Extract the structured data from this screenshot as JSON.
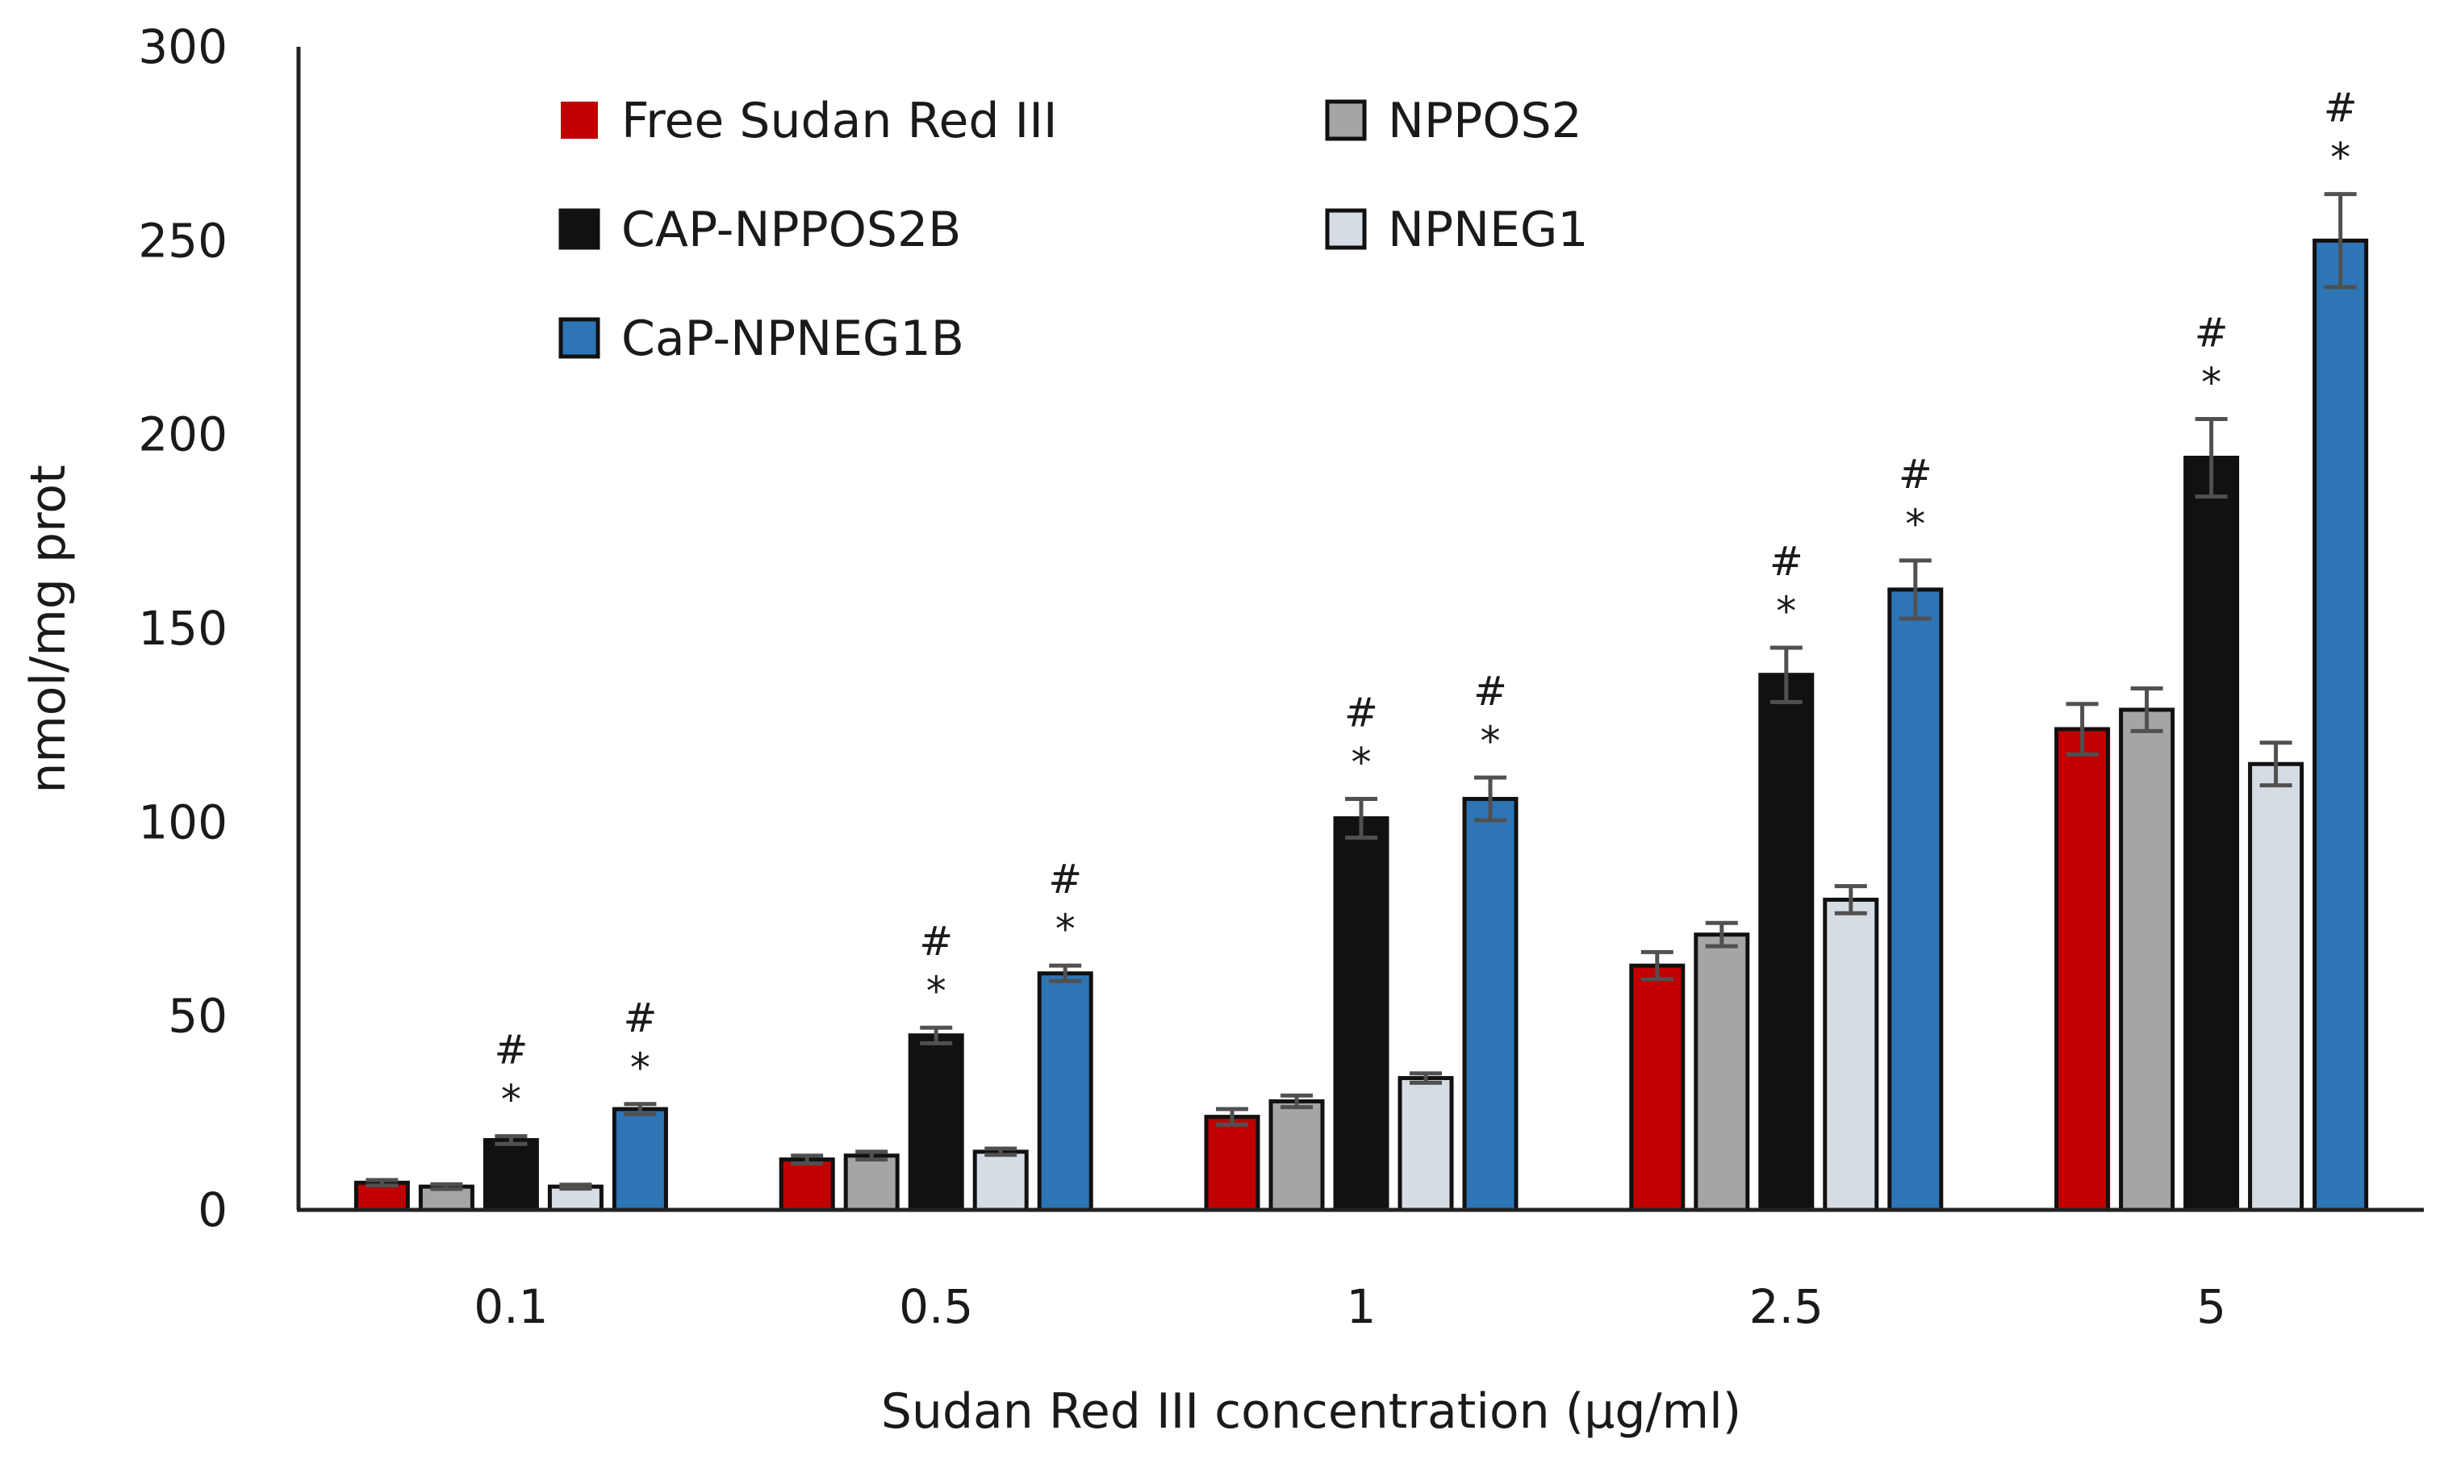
{
  "chart_data": {
    "type": "bar",
    "title": "",
    "xlabel": "Sudan Red III concentration (µg/ml)",
    "ylabel": "nmol/mg prot",
    "ylim": [
      0,
      300
    ],
    "yticks": [
      0,
      50,
      100,
      150,
      200,
      250,
      300
    ],
    "grid": false,
    "legend_position": "top-left",
    "categories": [
      "0.1",
      "0.5",
      "1",
      "2.5",
      "5"
    ],
    "series": [
      {
        "name": "Free Sudan Red III",
        "color": "#c00000",
        "values": [
          7,
          13,
          24,
          63,
          124
        ],
        "errors": [
          0.7,
          1.0,
          2.0,
          3.5,
          6.5
        ],
        "markers": [
          "",
          "",
          "",
          "",
          ""
        ]
      },
      {
        "name": "NPPOS2",
        "color": "#a5a5a5",
        "values": [
          6,
          14,
          28,
          71,
          129
        ],
        "errors": [
          0.6,
          1.0,
          1.5,
          3.0,
          5.5
        ],
        "markers": [
          "",
          "",
          "",
          "",
          ""
        ]
      },
      {
        "name": "CAP-NPPOS2B",
        "color": "#111111",
        "values": [
          18,
          45,
          101,
          138,
          194
        ],
        "errors": [
          1.0,
          2.0,
          5.0,
          7.0,
          10.0
        ],
        "markers": [
          "*#",
          "*#",
          "*#",
          "*#",
          "*#"
        ]
      },
      {
        "name": "NPNEG1",
        "color": "#d6dce4",
        "values": [
          6,
          15,
          34,
          80,
          115
        ],
        "errors": [
          0.5,
          0.8,
          1.2,
          3.5,
          5.5
        ],
        "markers": [
          "",
          "",
          "",
          "",
          ""
        ]
      },
      {
        "name": "CaP-NPNEG1B",
        "color": "#2e75b6",
        "values": [
          26,
          61,
          106,
          160,
          250
        ],
        "errors": [
          1.3,
          2.0,
          5.5,
          7.5,
          12.0
        ],
        "markers": [
          "*#",
          "*#",
          "*#",
          "*#",
          "*#"
        ]
      }
    ],
    "significance_symbols": {
      "star": "*",
      "hash": "#"
    }
  }
}
